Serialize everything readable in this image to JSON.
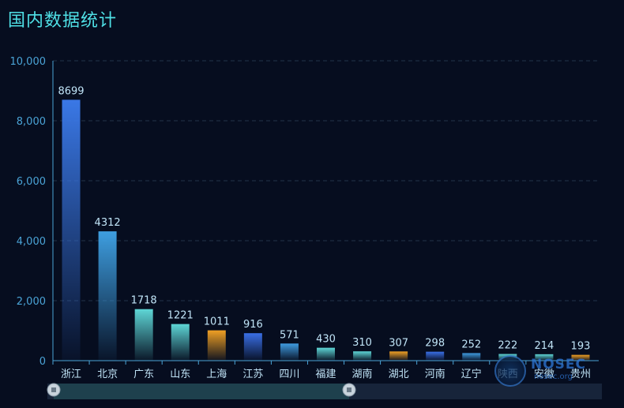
{
  "page": {
    "title": "国内数据统计"
  },
  "chart_data": {
    "type": "bar",
    "categories": [
      "浙江",
      "北京",
      "广东",
      "山东",
      "上海",
      "江苏",
      "四川",
      "福建",
      "湖南",
      "湖北",
      "河南",
      "辽宁",
      "陕西",
      "安徽",
      "贵州"
    ],
    "values": [
      8699,
      4312,
      1718,
      1221,
      1011,
      916,
      571,
      430,
      310,
      307,
      298,
      252,
      222,
      214,
      193
    ],
    "y_ticks": [
      "0",
      "2,000",
      "4,000",
      "6,000",
      "8,000",
      "10,000"
    ],
    "ylim": [
      0,
      10000
    ],
    "grid": true,
    "bar_colors": [
      "#3a78e6",
      "#3e9ee0",
      "#5ed6d6",
      "#5ed6d6",
      "#f0a024",
      "#3a6fe6",
      "#3f9be0",
      "#5ed6d6",
      "#5ed6d6",
      "#f0a024",
      "#3a6fe6",
      "#3f9be0",
      "#5ed6d6",
      "#5ed6d6",
      "#f0a024"
    ],
    "axis_color": "#4aa3d6",
    "label_color": "#c0e4f7",
    "datazoom": {
      "start_fraction": 0.0,
      "end_fraction": 0.5
    }
  },
  "watermark": {
    "text": "NOSEC",
    "sub": "nosec.org"
  }
}
